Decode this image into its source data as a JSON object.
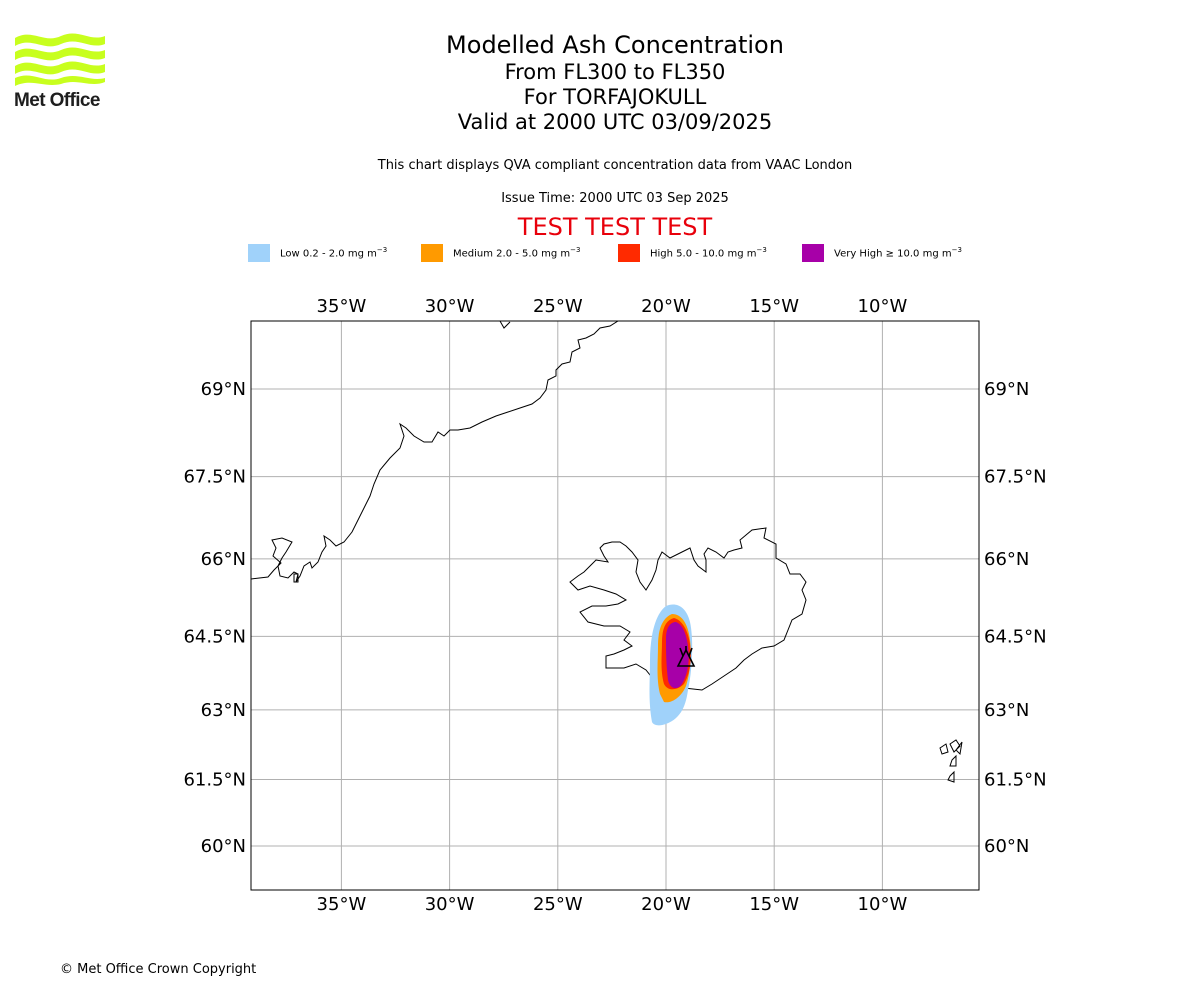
{
  "logo": {
    "text": "Met Office"
  },
  "header": {
    "title": "Modelled Ash Concentration",
    "levels": "From FL300 to FL350",
    "volcano": "For TORFAJOKULL",
    "valid": "Valid at 2000 UTC 03/09/2025",
    "description": "This chart displays QVA compliant concentration data from VAAC London",
    "issue_time": "Issue Time: 2000 UTC 03 Sep 2025",
    "test_banner": "TEST TEST TEST"
  },
  "legend": {
    "items": [
      {
        "label": "Low 0.2 - 2.0 mg m",
        "exp": "−3",
        "color": "#a0d2fa"
      },
      {
        "label": "Medium 2.0 - 5.0 mg m",
        "exp": "−3",
        "color": "#ff9a00"
      },
      {
        "label": "High 5.0 - 10.0 mg m",
        "exp": "−3",
        "color": "#ff2a00"
      },
      {
        "label": "Very High ≥ 10.0 mg m",
        "exp": "−3",
        "color": "#a700a8"
      }
    ]
  },
  "map": {
    "lon_range": [
      -39.2,
      -5.5
    ],
    "lat_range": [
      59.2,
      70.2
    ],
    "lon_ticks": [
      {
        "value": -35,
        "label": "35°W"
      },
      {
        "value": -30,
        "label": "30°W"
      },
      {
        "value": -25,
        "label": "25°W"
      },
      {
        "value": -20,
        "label": "20°W"
      },
      {
        "value": -15,
        "label": "15°W"
      },
      {
        "value": -10,
        "label": "10°W"
      }
    ],
    "lat_ticks": [
      {
        "value": 69,
        "label": "69°N"
      },
      {
        "value": 67.5,
        "label": "67.5°N"
      },
      {
        "value": 66,
        "label": "66°N"
      },
      {
        "value": 64.5,
        "label": "64.5°N"
      },
      {
        "value": 63,
        "label": "63°N"
      },
      {
        "value": 61.5,
        "label": "61.5°N"
      },
      {
        "value": 60,
        "label": "60°N"
      }
    ],
    "grid": true,
    "volcano_symbol": "volcano-triangle-icon",
    "volcano_location": [
      -19.05,
      63.93
    ]
  },
  "footer": {
    "copyright": "© Met Office Crown Copyright"
  }
}
